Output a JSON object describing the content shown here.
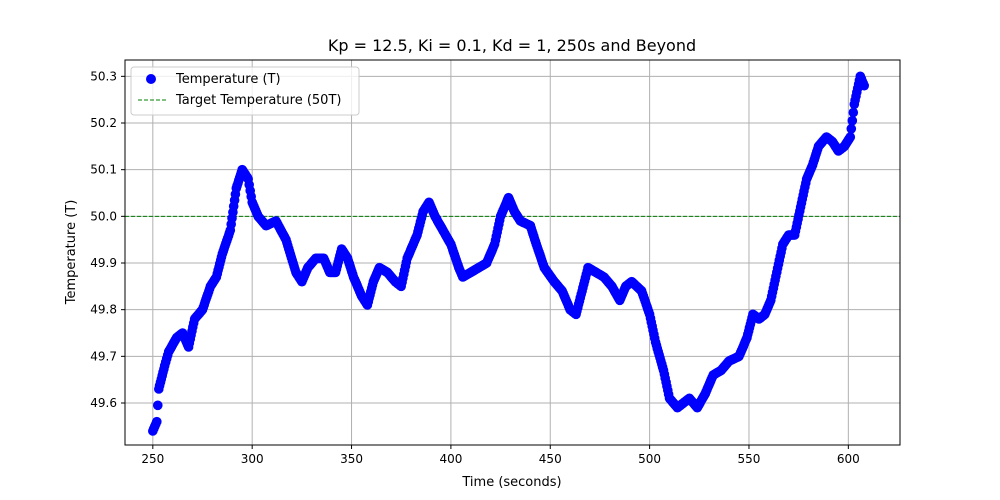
{
  "chart_data": {
    "type": "scatter",
    "title": "Kp = 12.5, Ki = 0.1, Kd = 1, 250s and Beyond",
    "xlabel": "Time (seconds)",
    "ylabel": "Temperature (T)",
    "xlim": [
      236,
      626
    ],
    "ylim": [
      49.51,
      50.335
    ],
    "xticks": [
      250,
      300,
      350,
      400,
      450,
      500,
      550,
      600
    ],
    "yticks": [
      49.6,
      49.7,
      49.8,
      49.9,
      50.0,
      50.1,
      50.2,
      50.3
    ],
    "xtick_labels": [
      "250",
      "300",
      "350",
      "400",
      "450",
      "500",
      "550",
      "600"
    ],
    "ytick_labels": [
      "49.6",
      "49.7",
      "49.8",
      "49.9",
      "50.0",
      "50.1",
      "50.2",
      "50.3"
    ],
    "grid": true,
    "legend_position": "top-left",
    "series": [
      {
        "name": "Temperature (T)",
        "kind": "scatter",
        "color": "#0000ff",
        "keypoints": [
          [
            250,
            49.54
          ],
          [
            252,
            49.56
          ],
          [
            253,
            49.63
          ],
          [
            256,
            49.68
          ],
          [
            258,
            49.71
          ],
          [
            262,
            49.74
          ],
          [
            265,
            49.75
          ],
          [
            268,
            49.72
          ],
          [
            271,
            49.78
          ],
          [
            275,
            49.8
          ],
          [
            279,
            49.85
          ],
          [
            282,
            49.87
          ],
          [
            285,
            49.92
          ],
          [
            289,
            49.97
          ],
          [
            292,
            50.06
          ],
          [
            295,
            50.1
          ],
          [
            298,
            50.08
          ],
          [
            300,
            50.03
          ],
          [
            303,
            50.0
          ],
          [
            307,
            49.98
          ],
          [
            312,
            49.99
          ],
          [
            317,
            49.95
          ],
          [
            322,
            49.88
          ],
          [
            325,
            49.86
          ],
          [
            328,
            49.89
          ],
          [
            332,
            49.91
          ],
          [
            336,
            49.91
          ],
          [
            339,
            49.88
          ],
          [
            342,
            49.88
          ],
          [
            345,
            49.93
          ],
          [
            348,
            49.91
          ],
          [
            351,
            49.87
          ],
          [
            355,
            49.83
          ],
          [
            358,
            49.81
          ],
          [
            361,
            49.86
          ],
          [
            364,
            49.89
          ],
          [
            368,
            49.88
          ],
          [
            372,
            49.86
          ],
          [
            375,
            49.85
          ],
          [
            378,
            49.91
          ],
          [
            383,
            49.96
          ],
          [
            386,
            50.01
          ],
          [
            389,
            50.03
          ],
          [
            392,
            50.0
          ],
          [
            396,
            49.97
          ],
          [
            400,
            49.94
          ],
          [
            404,
            49.89
          ],
          [
            406,
            49.87
          ],
          [
            410,
            49.88
          ],
          [
            414,
            49.89
          ],
          [
            418,
            49.9
          ],
          [
            422,
            49.94
          ],
          [
            425,
            50.0
          ],
          [
            429,
            50.04
          ],
          [
            432,
            50.01
          ],
          [
            435,
            49.99
          ],
          [
            440,
            49.98
          ],
          [
            443,
            49.94
          ],
          [
            447,
            49.89
          ],
          [
            452,
            49.86
          ],
          [
            456,
            49.84
          ],
          [
            460,
            49.8
          ],
          [
            463,
            49.79
          ],
          [
            466,
            49.84
          ],
          [
            469,
            49.89
          ],
          [
            473,
            49.88
          ],
          [
            477,
            49.87
          ],
          [
            481,
            49.85
          ],
          [
            485,
            49.82
          ],
          [
            488,
            49.85
          ],
          [
            491,
            49.86
          ],
          [
            496,
            49.84
          ],
          [
            500,
            49.79
          ],
          [
            503,
            49.73
          ],
          [
            507,
            49.67
          ],
          [
            510,
            49.61
          ],
          [
            514,
            49.59
          ],
          [
            517,
            49.6
          ],
          [
            520,
            49.61
          ],
          [
            524,
            49.59
          ],
          [
            528,
            49.62
          ],
          [
            532,
            49.66
          ],
          [
            536,
            49.67
          ],
          [
            540,
            49.69
          ],
          [
            545,
            49.7
          ],
          [
            549,
            49.74
          ],
          [
            552,
            49.79
          ],
          [
            555,
            49.78
          ],
          [
            558,
            49.79
          ],
          [
            561,
            49.82
          ],
          [
            564,
            49.88
          ],
          [
            567,
            49.94
          ],
          [
            570,
            49.96
          ],
          [
            573,
            49.96
          ],
          [
            576,
            50.02
          ],
          [
            579,
            50.08
          ],
          [
            582,
            50.11
          ],
          [
            585,
            50.15
          ],
          [
            589,
            50.17
          ],
          [
            592,
            50.16
          ],
          [
            595,
            50.14
          ],
          [
            598,
            50.15
          ],
          [
            601,
            50.17
          ],
          [
            603,
            50.24
          ],
          [
            606,
            50.3
          ],
          [
            608,
            50.28
          ]
        ]
      },
      {
        "name": "Target Temperature (50T)",
        "kind": "hline",
        "y": 50.0,
        "color": "#008000",
        "linestyle": "dashed"
      }
    ]
  }
}
